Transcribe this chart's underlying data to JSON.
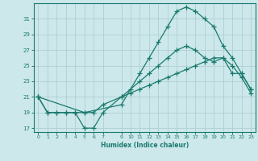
{
  "bg_color": "#cce8eb",
  "grid_color": "#b0ced2",
  "line_color": "#1a7a6e",
  "xlabel": "Humidex (Indice chaleur)",
  "ylim": [
    16.5,
    33.0
  ],
  "xlim": [
    -0.5,
    23.5
  ],
  "yticks": [
    17,
    19,
    21,
    23,
    25,
    27,
    29,
    31
  ],
  "xticks": [
    0,
    1,
    2,
    3,
    4,
    5,
    6,
    7,
    9,
    10,
    11,
    12,
    13,
    14,
    15,
    16,
    17,
    18,
    19,
    20,
    21,
    22,
    23
  ],
  "line1_x": [
    0,
    1,
    2,
    3,
    4,
    5,
    6,
    7,
    9,
    10,
    11,
    12,
    13,
    14,
    15,
    16,
    17,
    18,
    19,
    20,
    21,
    22,
    23
  ],
  "line1_y": [
    21,
    19,
    19,
    19,
    19,
    17,
    17,
    19,
    21,
    22,
    23,
    24,
    25,
    26,
    27,
    27.5,
    27,
    26,
    25.5,
    26,
    24,
    24,
    22
  ],
  "line2_x": [
    0,
    1,
    2,
    3,
    4,
    5,
    6,
    7,
    9,
    10,
    11,
    12,
    13,
    14,
    15,
    16,
    17,
    18,
    19,
    20,
    21,
    22,
    23
  ],
  "line2_y": [
    21,
    19,
    19,
    19,
    19,
    19,
    19,
    20,
    21,
    21.5,
    22,
    22.5,
    23,
    23.5,
    24,
    24.5,
    25,
    25.5,
    26,
    26,
    25,
    23.5,
    21.5
  ],
  "line3_x": [
    0,
    5,
    9,
    11,
    12,
    13,
    14,
    15,
    16,
    17,
    18,
    19,
    20,
    21,
    22,
    23
  ],
  "line3_y": [
    21,
    19,
    20,
    24,
    26,
    28,
    30,
    32,
    32.5,
    32,
    31,
    30,
    27.5,
    26,
    24,
    22
  ],
  "marker": "+",
  "markersize": 4,
  "linewidth": 0.9
}
